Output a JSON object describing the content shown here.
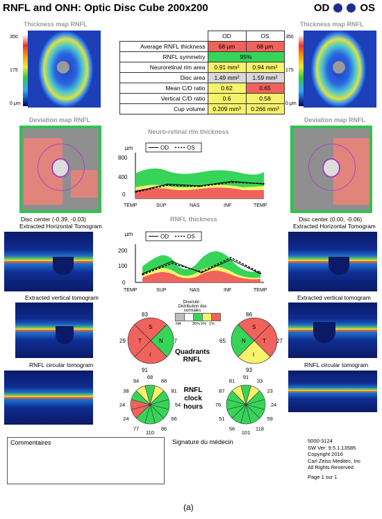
{
  "header": {
    "title": "RNFL and ONH: Optic Disc Cube 200x200",
    "od_label": "OD",
    "os_label": "OS"
  },
  "thickness_map": {
    "title": "Thickness map RNFL",
    "scale": [
      "350",
      "175",
      "0 μm"
    ]
  },
  "table": {
    "col_headers": [
      "OD",
      "OS"
    ],
    "rows": [
      {
        "label": "Average RNFL thickness",
        "od": "68 μm",
        "os": "68 μm"
      },
      {
        "label": "RNFL symmetry",
        "value": "95%"
      },
      {
        "label": "Neuroretinal rim area",
        "od": "0.91 mm²",
        "os": "0.94 mm²"
      },
      {
        "label": "Disc area",
        "od": "1.49 mm²",
        "os": "1.59 mm²"
      },
      {
        "label": "Mean C/D ratio",
        "od": "0.62",
        "os": "0.65"
      },
      {
        "label": "Vertical C/D ratio",
        "od": "0.6",
        "os": "0.58"
      },
      {
        "label": "Cup volume",
        "od": "0.209 mm³",
        "os": "0.266 mm³"
      }
    ]
  },
  "deviation": {
    "title": "Deviation map RNFL",
    "od_center": "Disc center (-0.39, -0.03)",
    "os_center": "Disc center (0.00, -0.06)"
  },
  "tomograms": {
    "horizontal": "Extracted Horizontal Tomogram",
    "vertical": "Extracted vertical tomogram",
    "circular": "RNFL circular tomogram"
  },
  "charts": {
    "rim": {
      "title": "Neuro-retinal rim thickness",
      "unit": "μm",
      "legend_od": "OD",
      "legend_os": "OS",
      "yticks": [
        "800",
        "400",
        "0"
      ],
      "xticks": [
        "TEMP",
        "SUP",
        "NAS",
        "INF",
        "TEMP"
      ]
    },
    "rnfl": {
      "title": "RNFL thickness",
      "unit": "μm",
      "legend_od": "OD",
      "legend_os": "OS",
      "yticks": [
        "200",
        "100",
        "0"
      ],
      "xticks": [
        "TEMP",
        "SUP",
        "NAS",
        "INF",
        "TEMP"
      ]
    }
  },
  "chart_data": [
    {
      "type": "line",
      "title": "Neuro-retinal rim thickness",
      "ylabel": "μm",
      "ylim": [
        0,
        800
      ],
      "categories": [
        "TEMP",
        "SUP",
        "NAS",
        "INF",
        "TEMP"
      ],
      "series": [
        {
          "name": "OD",
          "values": [
            120,
            250,
            220,
            300,
            250
          ]
        },
        {
          "name": "OS",
          "values": [
            110,
            230,
            210,
            280,
            260
          ]
        }
      ]
    },
    {
      "type": "line",
      "title": "RNFL thickness",
      "ylabel": "μm",
      "ylim": [
        0,
        200
      ],
      "categories": [
        "TEMP",
        "SUP",
        "NAS",
        "INF",
        "TEMP"
      ],
      "series": [
        {
          "name": "OD",
          "values": [
            45,
            110,
            50,
            120,
            45
          ]
        },
        {
          "name": "OS",
          "values": [
            40,
            100,
            55,
            130,
            50
          ]
        }
      ]
    }
  ],
  "distribution": {
    "title_line1": "Diversité :",
    "title_line2": "Distribution des normales",
    "labels": [
      "NA",
      "95%",
      "5%",
      "1%"
    ],
    "colors": [
      "#bdbdbd",
      "#37d45a",
      "#f7f26b",
      "#f0625c"
    ]
  },
  "quadrants": {
    "label_line1": "Quadrants",
    "label_line2": "RNFL",
    "od": {
      "S": "83",
      "N": "67",
      "I": "91",
      "T": "29"
    },
    "os": {
      "S": "86",
      "N": "65",
      "I": "93",
      "T": "27"
    },
    "letters": {
      "S": "S",
      "N": "N",
      "I": "I",
      "T": "T"
    }
  },
  "clock": {
    "label_line1": "RNFL",
    "label_line2": "clock",
    "label_line3": "hours",
    "od": [
      "68",
      "88",
      "81",
      "54",
      "66",
      "86",
      "110",
      "77",
      "24",
      "24",
      "38",
      "94"
    ],
    "os": [
      "91",
      "33",
      "23",
      "24",
      "59",
      "118",
      "101",
      "56",
      "51",
      "76",
      "87",
      "81"
    ]
  },
  "footer": {
    "comments_label": "Commentaires",
    "signature_label": "Signature du médecin",
    "info": [
      "5000-3124",
      "SW Ver: 9.5.1.13585",
      "Copyright 2016",
      "Carl Zeiss Meditec, Inc",
      "All Rights Reserved"
    ],
    "page": "Page 1 sur 1",
    "caption": "(a)"
  }
}
